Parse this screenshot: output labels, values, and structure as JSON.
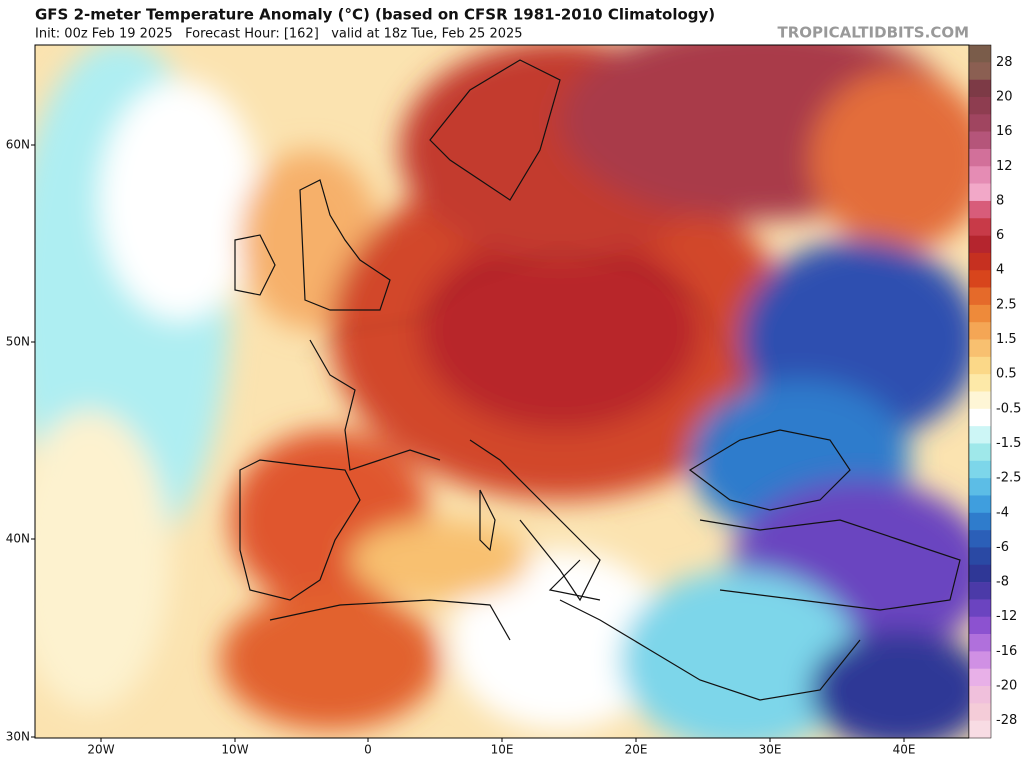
{
  "header": {
    "title": "GFS 2-meter Temperature Anomaly (°C) (based on CFSR 1981-2010 Climatology)",
    "subtitle": "Init: 00z Feb 19 2025   Forecast Hour: [162]   valid at 18z Tue, Feb 25 2025",
    "watermark": "TROPICALTIDBITS.COM"
  },
  "map": {
    "lat_labels": [
      "60N",
      "50N",
      "40N",
      "30N"
    ],
    "lon_labels": [
      "20W",
      "10W",
      "0",
      "10E",
      "20E",
      "30E",
      "40E"
    ]
  },
  "colorbar": {
    "labels": [
      28,
      20,
      16,
      12,
      8,
      6,
      4,
      2.5,
      1.5,
      0.5,
      -0.5,
      -1.5,
      -2.5,
      -4,
      -6,
      -8,
      -12,
      -16,
      -20,
      -28
    ],
    "colors": [
      "#7a5c4a",
      "#8b5f52",
      "#7d3a46",
      "#8e3d50",
      "#a04560",
      "#b5557a",
      "#d2709a",
      "#e58cb4",
      "#f2a8c8",
      "#d85c7a",
      "#c83a48",
      "#b5252e",
      "#c63020",
      "#d8451c",
      "#e56a2a",
      "#ee8a3a",
      "#f4a655",
      "#f8c070",
      "#fbd888",
      "#fde9a8",
      "#fef6d6",
      "#ffffff",
      "#cdf6f6",
      "#9fe8ea",
      "#7dd6ea",
      "#5cbde6",
      "#3f9ede",
      "#2f7ccc",
      "#2b5fb8",
      "#2a49a4",
      "#2f3796",
      "#4b3aa8",
      "#6b44c0",
      "#8c52d0",
      "#b070dc",
      "#d090e4",
      "#e8b0e8",
      "#f0c0dc",
      "#f4ccd8",
      "#f8dce4"
    ]
  }
}
